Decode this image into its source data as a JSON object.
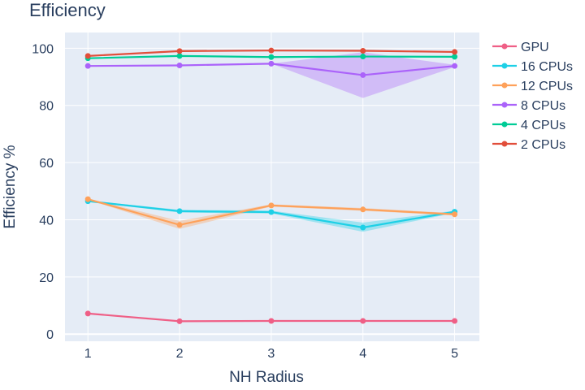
{
  "chart_data": {
    "type": "line",
    "title": "Efficiency",
    "xlabel": "NH Radius",
    "ylabel": "Efficiency %",
    "x": [
      1,
      2,
      3,
      4,
      5
    ],
    "xlim": [
      0.75,
      5.27
    ],
    "ylim": [
      -2.5,
      105.5
    ],
    "x_ticks": [
      1,
      2,
      3,
      4,
      5
    ],
    "y_ticks": [
      0,
      20,
      40,
      60,
      80,
      100
    ],
    "grid": true,
    "legend_position": "right",
    "background": "#e5ecf6",
    "series": [
      {
        "name": "GPU",
        "color": "#ef5f86",
        "values": [
          7.2,
          4.5,
          4.6,
          4.6,
          4.6
        ],
        "lower": [
          7.2,
          4.5,
          4.6,
          4.6,
          4.6
        ],
        "upper": [
          7.2,
          4.5,
          4.6,
          4.6,
          4.6
        ]
      },
      {
        "name": "16 CPUs",
        "color": "#1ed0e6",
        "values": [
          46.5,
          43.0,
          42.7,
          37.3,
          42.8
        ],
        "lower": [
          46.3,
          42.5,
          42.2,
          35.8,
          42.4
        ],
        "upper": [
          46.7,
          43.5,
          43.2,
          39.0,
          43.2
        ]
      },
      {
        "name": "12 CPUs",
        "color": "#fea15a",
        "values": [
          47.2,
          38.2,
          45.0,
          43.6,
          41.9
        ],
        "lower": [
          47.0,
          36.8,
          44.6,
          43.1,
          41.5
        ],
        "upper": [
          47.4,
          39.6,
          45.4,
          44.1,
          42.3
        ]
      },
      {
        "name": "8 CPUs",
        "color": "#ab63fa",
        "values": [
          93.8,
          94.0,
          94.6,
          90.6,
          93.8
        ],
        "lower": [
          93.8,
          94.0,
          94.6,
          82.6,
          93.4
        ],
        "upper": [
          93.8,
          94.0,
          94.6,
          98.6,
          94.2
        ]
      },
      {
        "name": "4 CPUs",
        "color": "#00cc96",
        "values": [
          96.5,
          97.3,
          96.9,
          97.1,
          97.0
        ],
        "lower": [
          96.5,
          97.3,
          96.9,
          97.1,
          97.0
        ],
        "upper": [
          96.5,
          97.3,
          96.9,
          97.1,
          97.0
        ]
      },
      {
        "name": "2 CPUs",
        "color": "#e14e3a",
        "values": [
          97.3,
          99.0,
          99.2,
          99.1,
          98.7
        ],
        "lower": [
          97.3,
          99.0,
          99.2,
          99.1,
          98.7
        ],
        "upper": [
          97.3,
          99.0,
          99.2,
          99.1,
          98.7
        ]
      }
    ]
  }
}
